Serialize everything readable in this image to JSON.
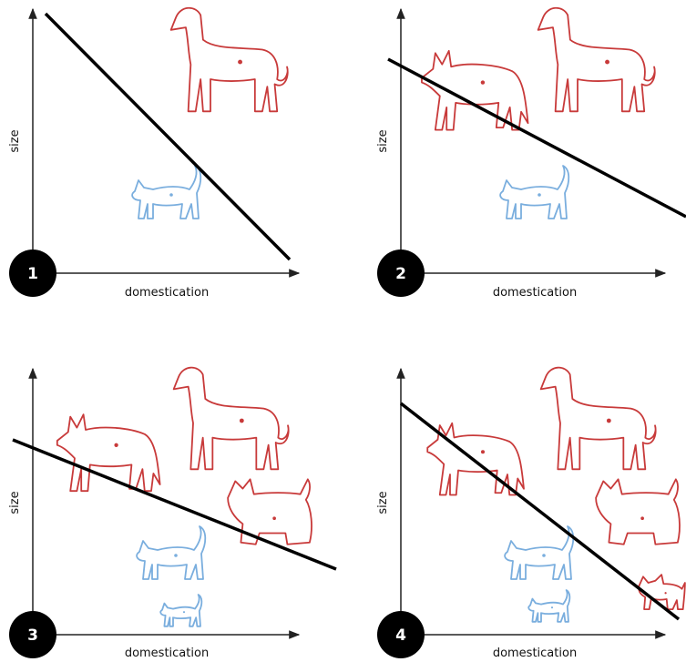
{
  "panels": [
    {
      "number": "1",
      "x_label": "domestication",
      "y_label": "size"
    },
    {
      "number": "2",
      "x_label": "domestication",
      "y_label": "size"
    },
    {
      "number": "3",
      "x_label": "domestication",
      "y_label": "size"
    },
    {
      "number": "4",
      "x_label": "domestication",
      "y_label": "size"
    }
  ]
}
